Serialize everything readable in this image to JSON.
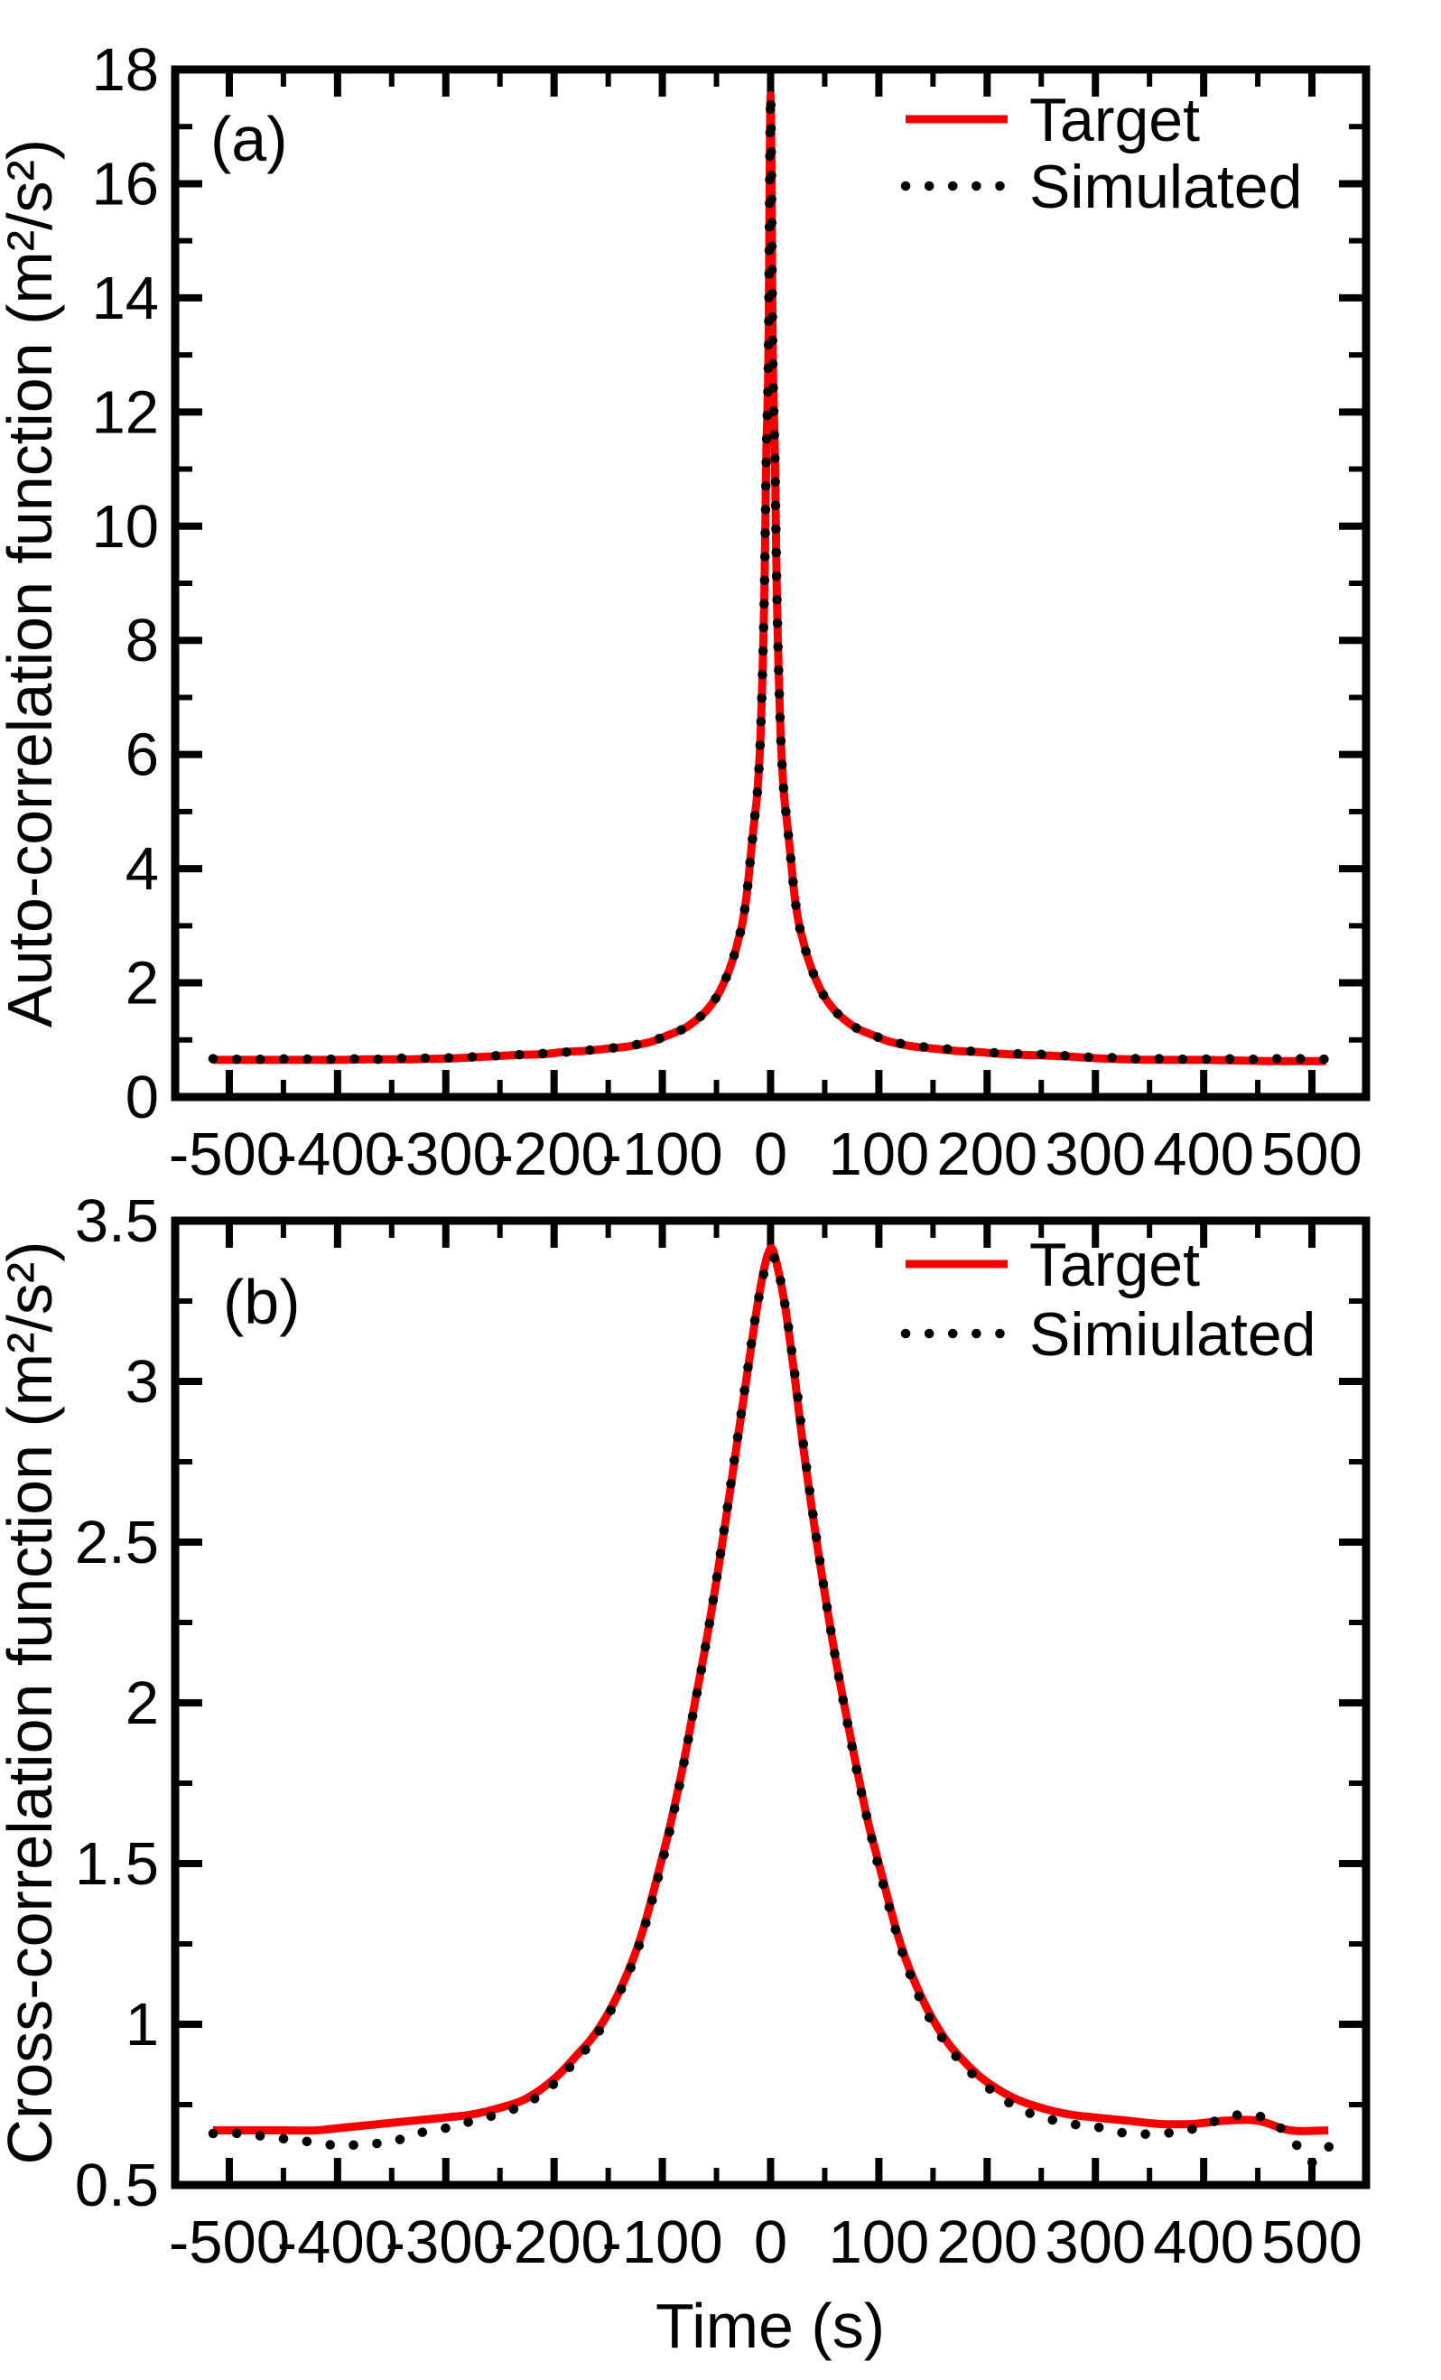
{
  "figure": {
    "background": "#ffffff",
    "axis_color": "#000000",
    "accent_red": "#f40000"
  },
  "chart_data": [
    {
      "id": "a",
      "type": "line",
      "title": "(a)",
      "ylabel": "Auto-correlation function (m²/s²)",
      "xlabel": "",
      "xlim": [
        -550,
        550
      ],
      "ylim": [
        0,
        18
      ],
      "x_ticks": [
        -500,
        -400,
        -300,
        -200,
        -100,
        0,
        100,
        200,
        300,
        400,
        500
      ],
      "y_ticks": [
        0,
        2,
        4,
        6,
        8,
        10,
        12,
        14,
        16,
        18
      ],
      "x_minor_step": 50,
      "y_minor_step": 1,
      "grid": false,
      "legend_position": "upper right",
      "legend": [
        {
          "name": "Target",
          "style": "solid",
          "color": "#f40000"
        },
        {
          "name": "Simulated",
          "style": "dotted",
          "color": "#000000"
        }
      ],
      "series": [
        {
          "name": "Target",
          "points": [
            [
              -515,
              0.65
            ],
            [
              -470,
              0.65
            ],
            [
              -430,
              0.65
            ],
            [
              -400,
              0.65
            ],
            [
              -370,
              0.66
            ],
            [
              -340,
              0.66
            ],
            [
              -310,
              0.67
            ],
            [
              -290,
              0.68
            ],
            [
              -270,
              0.7
            ],
            [
              -250,
              0.72
            ],
            [
              -230,
              0.74
            ],
            [
              -210,
              0.75
            ],
            [
              -190,
              0.79
            ],
            [
              -170,
              0.81
            ],
            [
              -150,
              0.85
            ],
            [
              -130,
              0.89
            ],
            [
              -110,
              0.97
            ],
            [
              -95,
              1.08
            ],
            [
              -80,
              1.2
            ],
            [
              -70,
              1.33
            ],
            [
              -60,
              1.5
            ],
            [
              -50,
              1.75
            ],
            [
              -42,
              2.05
            ],
            [
              -35,
              2.4
            ],
            [
              -30,
              2.74
            ],
            [
              -26,
              3.05
            ],
            [
              -22,
              3.55
            ],
            [
              -18,
              4.3
            ],
            [
              -15,
              4.85
            ],
            [
              -12,
              5.4
            ],
            [
              -9,
              6.5
            ],
            [
              -6,
              8.6
            ],
            [
              -4,
              11.2
            ],
            [
              -2,
              13.0
            ],
            [
              0,
              17.55
            ],
            [
              2,
              13.0
            ],
            [
              4,
              11.2
            ],
            [
              6,
              8.6
            ],
            [
              9,
              6.5
            ],
            [
              12,
              5.4
            ],
            [
              15,
              4.85
            ],
            [
              18,
              4.3
            ],
            [
              22,
              3.55
            ],
            [
              26,
              3.05
            ],
            [
              30,
              2.74
            ],
            [
              35,
              2.4
            ],
            [
              42,
              2.05
            ],
            [
              50,
              1.75
            ],
            [
              60,
              1.5
            ],
            [
              70,
              1.33
            ],
            [
              80,
              1.2
            ],
            [
              95,
              1.08
            ],
            [
              110,
              0.97
            ],
            [
              130,
              0.89
            ],
            [
              150,
              0.85
            ],
            [
              170,
              0.81
            ],
            [
              190,
              0.79
            ],
            [
              210,
              0.76
            ],
            [
              230,
              0.74
            ],
            [
              250,
              0.73
            ],
            [
              275,
              0.71
            ],
            [
              300,
              0.68
            ],
            [
              330,
              0.66
            ],
            [
              360,
              0.65
            ],
            [
              400,
              0.65
            ],
            [
              430,
              0.64
            ],
            [
              460,
              0.63
            ],
            [
              490,
              0.63
            ],
            [
              513,
              0.63
            ]
          ]
        },
        {
          "name": "Simulated",
          "points": [
            [
              -515,
              0.67
            ],
            [
              -490,
              0.66
            ],
            [
              -465,
              0.66
            ],
            [
              -440,
              0.67
            ],
            [
              -415,
              0.66
            ],
            [
              -390,
              0.67
            ],
            [
              -365,
              0.66
            ],
            [
              -340,
              0.68
            ],
            [
              -315,
              0.68
            ],
            [
              -290,
              0.69
            ],
            [
              -268,
              0.71
            ],
            [
              -246,
              0.73
            ],
            [
              -224,
              0.75
            ],
            [
              -202,
              0.77
            ],
            [
              -180,
              0.8
            ],
            [
              -158,
              0.84
            ],
            [
              -136,
              0.88
            ],
            [
              -114,
              0.96
            ],
            [
              -96,
              1.07
            ],
            [
              -80,
              1.2
            ],
            [
              -70,
              1.33
            ],
            [
              -60,
              1.5
            ],
            [
              -50,
              1.75
            ],
            [
              -42,
              2.05
            ],
            [
              -35,
              2.4
            ],
            [
              -30,
              2.74
            ],
            [
              -26,
              3.05
            ],
            [
              -22,
              3.55
            ],
            [
              -18,
              4.3
            ],
            [
              -15,
              4.85
            ],
            [
              -12,
              5.4
            ],
            [
              -9,
              6.5
            ],
            [
              -6,
              8.6
            ],
            [
              -4,
              11.2
            ],
            [
              -2,
              13.0
            ],
            [
              0,
              17.55
            ],
            [
              2,
              13.0
            ],
            [
              4,
              11.2
            ],
            [
              6,
              8.6
            ],
            [
              9,
              6.5
            ],
            [
              12,
              5.4
            ],
            [
              15,
              4.85
            ],
            [
              18,
              4.3
            ],
            [
              22,
              3.55
            ],
            [
              26,
              3.05
            ],
            [
              30,
              2.74
            ],
            [
              35,
              2.4
            ],
            [
              42,
              2.05
            ],
            [
              50,
              1.75
            ],
            [
              60,
              1.5
            ],
            [
              70,
              1.33
            ],
            [
              80,
              1.2
            ],
            [
              96,
              1.07
            ],
            [
              114,
              0.96
            ],
            [
              136,
              0.89
            ],
            [
              158,
              0.85
            ],
            [
              180,
              0.81
            ],
            [
              202,
              0.78
            ],
            [
              224,
              0.76
            ],
            [
              246,
              0.75
            ],
            [
              268,
              0.73
            ],
            [
              290,
              0.7
            ],
            [
              315,
              0.69
            ],
            [
              340,
              0.67
            ],
            [
              365,
              0.67
            ],
            [
              390,
              0.66
            ],
            [
              415,
              0.67
            ],
            [
              440,
              0.66
            ],
            [
              465,
              0.67
            ],
            [
              490,
              0.67
            ],
            [
              516,
              0.66
            ]
          ]
        }
      ]
    },
    {
      "id": "b",
      "type": "line",
      "title": "(b)",
      "ylabel": "Cross-correlation function (m²/s²)",
      "xlabel": "Time (s)",
      "xlim": [
        -550,
        550
      ],
      "ylim": [
        0.5,
        3.5
      ],
      "x_ticks": [
        -500,
        -400,
        -300,
        -200,
        -100,
        0,
        100,
        200,
        300,
        400,
        500
      ],
      "y_ticks": [
        0.5,
        1,
        1.5,
        2,
        2.5,
        3,
        3.5
      ],
      "x_minor_step": 50,
      "y_minor_step": 0.25,
      "grid": false,
      "legend_position": "upper right",
      "legend": [
        {
          "name": "Target",
          "style": "solid",
          "color": "#f40000"
        },
        {
          "name": "Simiulated",
          "style": "dotted",
          "color": "#000000"
        }
      ],
      "series": [
        {
          "name": "Target",
          "points": [
            [
              -515,
              0.67
            ],
            [
              -480,
              0.67
            ],
            [
              -450,
              0.67
            ],
            [
              -420,
              0.67
            ],
            [
              -390,
              0.68
            ],
            [
              -360,
              0.69
            ],
            [
              -330,
              0.7
            ],
            [
              -300,
              0.71
            ],
            [
              -275,
              0.72
            ],
            [
              -250,
              0.74
            ],
            [
              -225,
              0.77
            ],
            [
              -200,
              0.83
            ],
            [
              -180,
              0.9
            ],
            [
              -160,
              0.98
            ],
            [
              -140,
              1.1
            ],
            [
              -120,
              1.27
            ],
            [
              -100,
              1.52
            ],
            [
              -90,
              1.66
            ],
            [
              -80,
              1.82
            ],
            [
              -70,
              2.0
            ],
            [
              -60,
              2.18
            ],
            [
              -50,
              2.38
            ],
            [
              -40,
              2.6
            ],
            [
              -30,
              2.83
            ],
            [
              -20,
              3.06
            ],
            [
              -12,
              3.24
            ],
            [
              -6,
              3.35
            ],
            [
              -2,
              3.4
            ],
            [
              2,
              3.41
            ],
            [
              8,
              3.33
            ],
            [
              14,
              3.22
            ],
            [
              22,
              3.02
            ],
            [
              30,
              2.8
            ],
            [
              40,
              2.56
            ],
            [
              50,
              2.34
            ],
            [
              60,
              2.14
            ],
            [
              70,
              1.96
            ],
            [
              80,
              1.79
            ],
            [
              90,
              1.63
            ],
            [
              100,
              1.5
            ],
            [
              120,
              1.25
            ],
            [
              140,
              1.08
            ],
            [
              160,
              0.96
            ],
            [
              180,
              0.88
            ],
            [
              200,
              0.82
            ],
            [
              225,
              0.77
            ],
            [
              250,
              0.74
            ],
            [
              275,
              0.72
            ],
            [
              300,
              0.71
            ],
            [
              330,
              0.7
            ],
            [
              360,
              0.69
            ],
            [
              390,
              0.69
            ],
            [
              420,
              0.7
            ],
            [
              450,
              0.7
            ],
            [
              480,
              0.67
            ],
            [
              515,
              0.67
            ]
          ]
        },
        {
          "name": "Simiulated",
          "points": [
            [
              -515,
              0.66
            ],
            [
              -490,
              0.66
            ],
            [
              -465,
              0.65
            ],
            [
              -440,
              0.64
            ],
            [
              -415,
              0.63
            ],
            [
              -395,
              0.62
            ],
            [
              -375,
              0.63
            ],
            [
              -355,
              0.63
            ],
            [
              -335,
              0.65
            ],
            [
              -315,
              0.67
            ],
            [
              -295,
              0.68
            ],
            [
              -275,
              0.7
            ],
            [
              -252,
              0.72
            ],
            [
              -228,
              0.75
            ],
            [
              -205,
              0.8
            ],
            [
              -182,
              0.88
            ],
            [
              -162,
              0.96
            ],
            [
              -142,
              1.08
            ],
            [
              -122,
              1.24
            ],
            [
              -102,
              1.48
            ],
            [
              -92,
              1.62
            ],
            [
              -82,
              1.78
            ],
            [
              -72,
              1.96
            ],
            [
              -62,
              2.14
            ],
            [
              -52,
              2.34
            ],
            [
              -42,
              2.56
            ],
            [
              -32,
              2.79
            ],
            [
              -22,
              3.02
            ],
            [
              -14,
              3.2
            ],
            [
              -8,
              3.31
            ],
            [
              -2,
              3.38
            ],
            [
              4,
              3.38
            ],
            [
              10,
              3.3
            ],
            [
              16,
              3.18
            ],
            [
              24,
              2.98
            ],
            [
              32,
              2.76
            ],
            [
              42,
              2.52
            ],
            [
              52,
              2.3
            ],
            [
              62,
              2.1
            ],
            [
              72,
              1.92
            ],
            [
              82,
              1.75
            ],
            [
              92,
              1.6
            ],
            [
              102,
              1.46
            ],
            [
              122,
              1.22
            ],
            [
              142,
              1.05
            ],
            [
              162,
              0.94
            ],
            [
              182,
              0.86
            ],
            [
              202,
              0.8
            ],
            [
              228,
              0.74
            ],
            [
              252,
              0.71
            ],
            [
              278,
              0.69
            ],
            [
              302,
              0.68
            ],
            [
              330,
              0.66
            ],
            [
              358,
              0.66
            ],
            [
              385,
              0.67
            ],
            [
              412,
              0.7
            ],
            [
              438,
              0.72
            ],
            [
              462,
              0.7
            ],
            [
              482,
              0.64
            ],
            [
              500,
              0.57
            ],
            [
              516,
              0.62
            ]
          ]
        }
      ]
    }
  ]
}
